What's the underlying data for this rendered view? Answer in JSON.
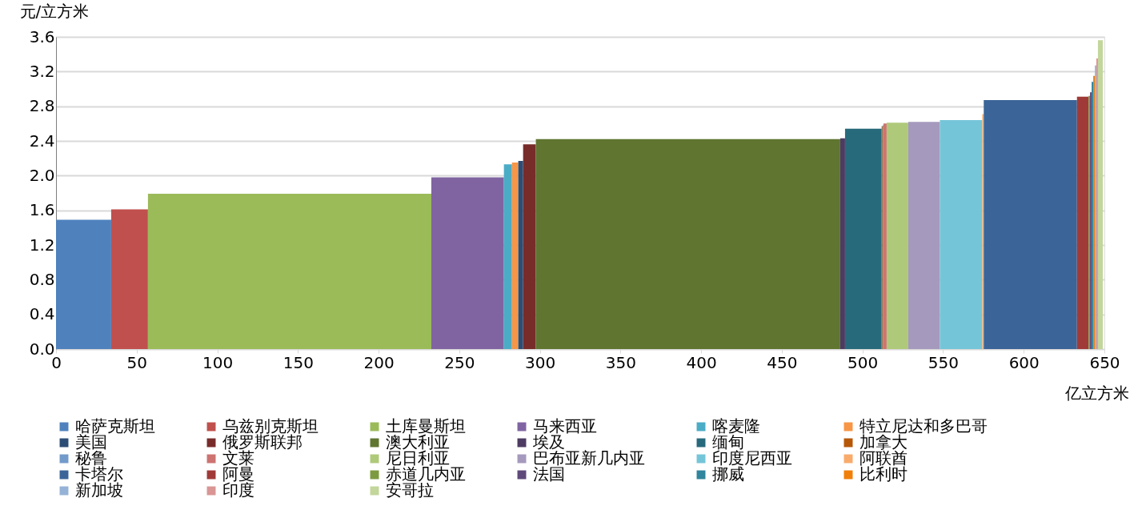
{
  "chart_data": {
    "type": "area",
    "xlabel": "亿立方米",
    "ylabel": "元/立方米",
    "xlim": [
      0,
      650
    ],
    "xticks": [
      0,
      50,
      100,
      150,
      200,
      250,
      300,
      350,
      400,
      450,
      500,
      550,
      600,
      650
    ],
    "ylim": [
      0,
      3.6
    ],
    "yticks": [
      {
        "value": 0,
        "label": "0.0"
      },
      0.4,
      0.8,
      1.2,
      1.6,
      {
        "value": 2,
        "label": "2.0"
      },
      2.4,
      2.8,
      3.2,
      3.6
    ],
    "grid": "y",
    "legend": "bottom",
    "series": [
      {
        "name": "哈萨克斯坦",
        "color": "#4f81bd",
        "x": [
          0,
          34.2
        ],
        "values": [
          1.49,
          1.49
        ]
      },
      {
        "name": "乌兹别克斯坦",
        "color": "#c0504d",
        "x": [
          34.2,
          57
        ],
        "values": [
          1.61,
          1.61
        ]
      },
      {
        "name": "土库曼斯坦",
        "color": "#9bbb59",
        "x": [
          57,
          232.7
        ],
        "values": [
          1.79,
          1.79
        ]
      },
      {
        "name": "马来西亚",
        "color": "#8064a2",
        "x": [
          232.7,
          277.7
        ],
        "values": [
          1.98,
          1.98
        ]
      },
      {
        "name": "喀麦隆",
        "color": "#4bacc6",
        "x": [
          277.7,
          282.7
        ],
        "values": [
          2.13,
          2.13
        ]
      },
      {
        "name": "特立尼达和多巴哥",
        "color": "#f79646",
        "x": [
          282.7,
          286.6
        ],
        "values": [
          2.15,
          2.15
        ]
      },
      {
        "name": "美国",
        "color": "#2c4d75",
        "x": [
          286.6,
          289.6
        ],
        "values": [
          2.17,
          2.17
        ]
      },
      {
        "name": "俄罗斯联邦",
        "color": "#772c2a",
        "x": [
          289.6,
          297.5
        ],
        "values": [
          2.36,
          2.36
        ]
      },
      {
        "name": "澳大利亚",
        "color": "#5f7530",
        "x": [
          297.5,
          486.2
        ],
        "values": [
          2.42,
          2.42
        ]
      },
      {
        "name": "埃及",
        "color": "#4d3b62",
        "x": [
          486.2,
          489.2
        ],
        "values": [
          2.43,
          2.43
        ]
      },
      {
        "name": "缅甸",
        "color": "#276a7c",
        "x": [
          489.2,
          511.9
        ],
        "values": [
          2.54,
          2.54
        ]
      },
      {
        "name": "加拿大",
        "color": "#b65708",
        "x": [
          511.9,
          512.5
        ],
        "values": [
          2.57,
          2.57
        ]
      },
      {
        "name": "秘鲁",
        "color": "#729aca",
        "x": [
          512.5,
          513
        ],
        "values": [
          2.58,
          2.58
        ]
      },
      {
        "name": "文莱",
        "color": "#cd7371",
        "x": [
          513,
          515
        ],
        "values": [
          2.6,
          2.6
        ]
      },
      {
        "name": "尼日利亚",
        "color": "#afc97a",
        "x": [
          515,
          528.4
        ],
        "values": [
          2.61,
          2.61
        ]
      },
      {
        "name": "巴布亚新几内亚",
        "color": "#a599bd",
        "x": [
          528.4,
          548
        ],
        "values": [
          2.62,
          2.62
        ]
      },
      {
        "name": "印度尼西亚",
        "color": "#75c5d8",
        "x": [
          548,
          574.3
        ],
        "values": [
          2.64,
          2.64
        ]
      },
      {
        "name": "阿联酋",
        "color": "#f9ab6b",
        "x": [
          574.3,
          575.2
        ],
        "values": [
          2.71,
          2.71
        ]
      },
      {
        "name": "卡塔尔",
        "color": "#3b6598",
        "x": [
          575.2,
          633
        ],
        "values": [
          2.87,
          2.87
        ]
      },
      {
        "name": "阿曼",
        "color": "#a03a38",
        "x": [
          633,
          640.2
        ],
        "values": [
          2.91,
          2.91
        ]
      },
      {
        "name": "赤道几内亚",
        "color": "#7e9a40",
        "x": [
          640.2,
          641.1
        ],
        "values": [
          2.92,
          2.92
        ]
      },
      {
        "name": "法国",
        "color": "#5f497a",
        "x": [
          641.1,
          642.1
        ],
        "values": [
          2.96,
          2.96
        ]
      },
      {
        "name": "挪威",
        "color": "#31859c",
        "x": [
          642.1,
          643.1
        ],
        "values": [
          3.08,
          3.08
        ]
      },
      {
        "name": "比利时",
        "color": "#f07f09",
        "x": [
          643.1,
          644.1
        ],
        "values": [
          3.15,
          3.15
        ]
      },
      {
        "name": "新加坡",
        "color": "#95b3d7",
        "x": [
          644.1,
          645
        ],
        "values": [
          3.27,
          3.27
        ]
      },
      {
        "name": "印度",
        "color": "#d99694",
        "x": [
          645,
          646
        ],
        "values": [
          3.35,
          3.35
        ]
      },
      {
        "name": "安哥拉",
        "color": "#c3d69b",
        "x": [
          646,
          649
        ],
        "values": [
          3.56,
          3.56
        ]
      }
    ]
  }
}
